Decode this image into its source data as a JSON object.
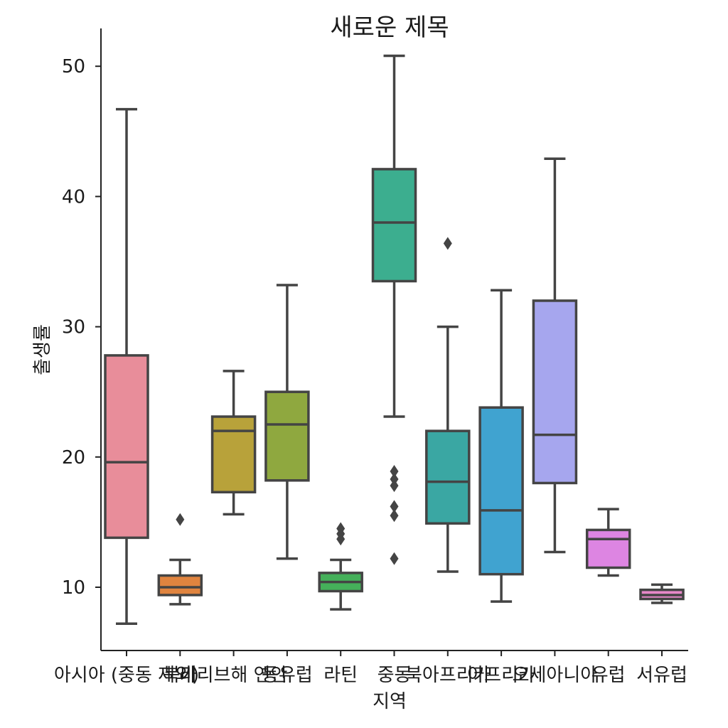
{
  "chart_data": {
    "type": "box",
    "title": "새로운 제목",
    "xlabel": "지역",
    "ylabel": "출생률",
    "ylim": [
      5,
      53
    ],
    "yticks": [
      10,
      20,
      30,
      40,
      50
    ],
    "categories": [
      {
        "label": "아시아 (중동 제외)",
        "color": "#e88d9a",
        "whislo": 7.2,
        "q1": 13.8,
        "med": 19.6,
        "q3": 27.8,
        "whishi": 46.7,
        "fliers": []
      },
      {
        "label": "북미",
        "color": "#e0843f",
        "whislo": 8.7,
        "q1": 9.4,
        "med": 10.0,
        "q3": 10.9,
        "whishi": 12.1,
        "fliers": [
          15.2
        ]
      },
      {
        "label": "카리브해 연안",
        "color": "#b8a23a",
        "whislo": 15.6,
        "q1": 17.3,
        "med": 22.0,
        "q3": 23.1,
        "whishi": 26.6,
        "fliers": []
      },
      {
        "label": "동유럽",
        "color": "#8fa83f",
        "whislo": 12.2,
        "q1": 18.2,
        "med": 22.5,
        "q3": 25.0,
        "whishi": 33.2,
        "fliers": []
      },
      {
        "label": "라틴",
        "color": "#45b05a",
        "whislo": 8.3,
        "q1": 9.7,
        "med": 10.4,
        "q3": 11.1,
        "whishi": 12.1,
        "fliers": [
          13.7,
          14.1,
          14.5
        ]
      },
      {
        "label": "중동",
        "color": "#3cae8f",
        "whislo": 23.1,
        "q1": 33.5,
        "med": 38.0,
        "q3": 42.1,
        "whishi": 50.8,
        "fliers": [
          12.2,
          15.5,
          16.2,
          17.8,
          18.3,
          18.9
        ]
      },
      {
        "label": "북아프리카",
        "color": "#3aa7a3",
        "whislo": 11.2,
        "q1": 14.9,
        "med": 18.1,
        "q3": 22.0,
        "whishi": 30.0,
        "fliers": [
          36.4
        ]
      },
      {
        "label": "아프리카",
        "color": "#40a3d0",
        "whislo": 8.9,
        "q1": 11.0,
        "med": 15.9,
        "q3": 23.8,
        "whishi": 32.8,
        "fliers": []
      },
      {
        "label": "오세아니아",
        "color": "#a6a6ee",
        "whislo": 12.7,
        "q1": 18.0,
        "med": 21.7,
        "q3": 32.0,
        "whishi": 42.9,
        "fliers": []
      },
      {
        "label": "유럽",
        "color": "#dd85e2",
        "whislo": 10.9,
        "q1": 11.5,
        "med": 13.7,
        "q3": 14.4,
        "whishi": 16.0,
        "fliers": []
      },
      {
        "label": "서유럽",
        "color": "#e688c8",
        "whislo": 8.8,
        "q1": 9.1,
        "med": 9.4,
        "q3": 9.8,
        "whishi": 10.2,
        "fliers": []
      }
    ],
    "grid": false
  }
}
